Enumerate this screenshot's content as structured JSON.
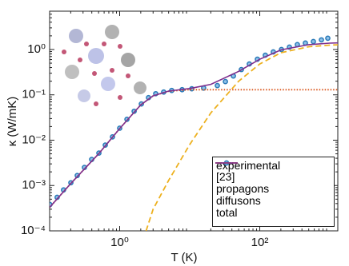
{
  "chart_data": {
    "type": "line",
    "xlabel": "T (K)",
    "ylabel": "κ (W/mK)",
    "xscale": "log",
    "yscale": "log",
    "xlim": [
      0.1,
      1300
    ],
    "ylim": [
      0.0001,
      7
    ],
    "xticks": [
      {
        "value": 1,
        "label": "10⁰"
      },
      {
        "value": 100,
        "label": "10²"
      }
    ],
    "yticks": [
      {
        "value": 0.0001,
        "label": "10⁻⁴"
      },
      {
        "value": 0.001,
        "label": "10⁻³"
      },
      {
        "value": 0.01,
        "label": "10⁻²"
      },
      {
        "value": 0.1,
        "label": "10⁻¹"
      },
      {
        "value": 1,
        "label": "10⁰"
      }
    ],
    "legend": "lower right",
    "series": [
      {
        "name": "experimental [23]",
        "color": "#2a7ab8",
        "style": "markers",
        "x": [
          0.101,
          0.128,
          0.158,
          0.201,
          0.248,
          0.314,
          0.398,
          0.505,
          0.623,
          0.789,
          1.0,
          1.27,
          1.61,
          2.04,
          2.58,
          3.27,
          4.25,
          5.53,
          7.79,
          10.7,
          15.8,
          24.8,
          32.3,
          42,
          54.6,
          71,
          92.5,
          120,
          156,
          204,
          265,
          344,
          448,
          583,
          759,
          936
        ],
        "values": [
          0.00038,
          0.00055,
          0.0008,
          0.00115,
          0.00166,
          0.0025,
          0.00376,
          0.0052,
          0.0078,
          0.0118,
          0.0184,
          0.0288,
          0.0434,
          0.063,
          0.0867,
          0.106,
          0.115,
          0.125,
          0.13,
          0.136,
          0.141,
          0.16,
          0.196,
          0.26,
          0.361,
          0.48,
          0.61,
          0.75,
          0.885,
          1.0,
          1.13,
          1.28,
          1.39,
          1.5,
          1.63,
          1.77
        ]
      },
      {
        "name": "propagons",
        "color": "#d95319",
        "style": "dotted",
        "x": [
          0.1,
          0.2,
          0.5,
          1,
          2,
          3,
          5,
          10,
          20,
          50,
          100,
          200,
          500,
          1000,
          1300
        ],
        "values": [
          0.00033,
          0.0011,
          0.005,
          0.018,
          0.06,
          0.095,
          0.12,
          0.13,
          0.13,
          0.13,
          0.13,
          0.13,
          0.13,
          0.13,
          0.13
        ]
      },
      {
        "name": "diffusons",
        "color": "#edb120",
        "style": "dashed",
        "x": [
          2.38,
          3,
          5,
          10,
          20,
          50,
          100,
          200,
          500,
          1000,
          1300
        ],
        "values": [
          0.0001,
          0.0003,
          0.0013,
          0.008,
          0.04,
          0.2,
          0.48,
          0.85,
          1.15,
          1.25,
          1.27
        ]
      },
      {
        "name": "total",
        "color": "#7e2f8e",
        "style": "solid",
        "x": [
          0.1,
          0.2,
          0.5,
          1,
          2,
          3,
          5,
          10,
          20,
          50,
          100,
          200,
          500,
          1000,
          1300
        ],
        "values": [
          0.00033,
          0.0011,
          0.005,
          0.018,
          0.06,
          0.095,
          0.121,
          0.138,
          0.17,
          0.33,
          0.61,
          0.98,
          1.28,
          1.38,
          1.4
        ]
      }
    ]
  }
}
